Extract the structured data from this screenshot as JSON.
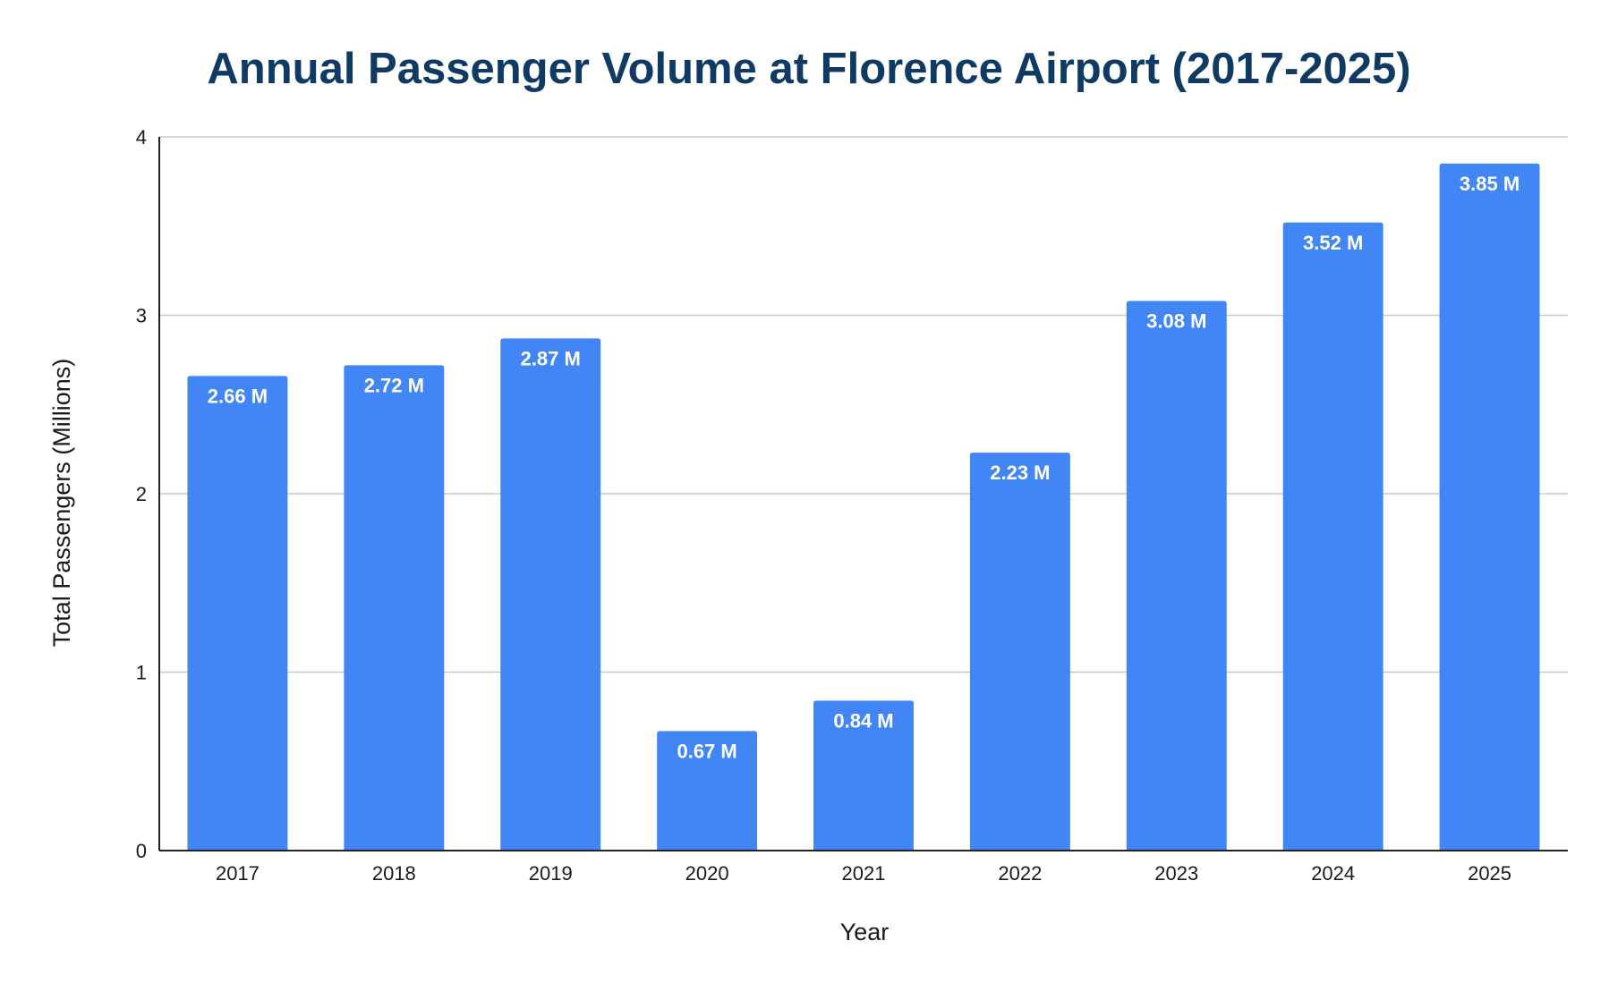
{
  "chart_data": {
    "type": "bar",
    "title": "Annual Passenger Volume at Florence Airport (2017-2025)",
    "xlabel": "Year",
    "ylabel": "Total Passengers (Millions)",
    "categories": [
      "2017",
      "2018",
      "2019",
      "2020",
      "2021",
      "2022",
      "2023",
      "2024",
      "2025"
    ],
    "values": [
      2.66,
      2.72,
      2.87,
      0.67,
      0.84,
      2.23,
      3.08,
      3.52,
      3.85
    ],
    "data_labels": [
      "2.66 M",
      "2.72 M",
      "2.87 M",
      "0.67 M",
      "0.84 M",
      "2.23 M",
      "3.08 M",
      "3.52 M",
      "3.85 M"
    ],
    "ylim": [
      0,
      4
    ],
    "yticks": [
      0,
      1,
      2,
      3,
      4
    ],
    "grid": true,
    "legend": "none",
    "bar_color": "#4285f4"
  }
}
